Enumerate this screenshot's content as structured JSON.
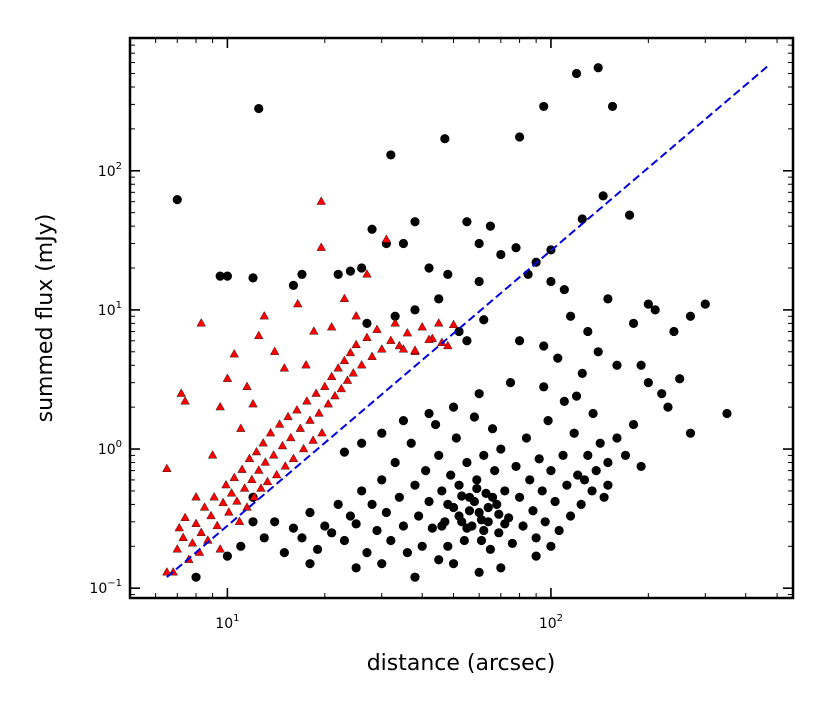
{
  "chart_data": {
    "type": "scatter",
    "title": "",
    "xlabel": "distance (arcsec)",
    "ylabel": "summed flux (mJy)",
    "xscale": "log",
    "yscale": "log",
    "xlim": [
      5.0,
      560
    ],
    "ylim": [
      0.085,
      900
    ],
    "x_ticks": [
      {
        "value": 10,
        "base": "10",
        "exp": "1"
      },
      {
        "value": 100,
        "base": "10",
        "exp": "2"
      }
    ],
    "y_ticks": [
      {
        "value": 0.1,
        "base": "10",
        "exp": "−1"
      },
      {
        "value": 1,
        "base": "10",
        "exp": "0"
      },
      {
        "value": 10,
        "base": "10",
        "exp": "1"
      },
      {
        "value": 100,
        "base": "10",
        "exp": "2"
      }
    ],
    "grid": false,
    "legend": "none",
    "colors": {
      "black_points": "#000000",
      "red_points": "#ff0000",
      "line": "#0000dd"
    },
    "series": [
      {
        "marker": "circle",
        "color": "#000000",
        "points": [
          [
            12.5,
            280
          ],
          [
            120,
            500
          ],
          [
            140,
            550
          ],
          [
            95,
            290
          ],
          [
            155,
            290
          ],
          [
            7,
            62
          ],
          [
            32,
            130
          ],
          [
            47,
            170
          ],
          [
            80,
            175
          ],
          [
            175,
            48
          ],
          [
            145,
            66
          ],
          [
            125,
            45
          ],
          [
            55,
            43
          ],
          [
            65,
            40
          ],
          [
            38,
            43
          ],
          [
            28,
            38
          ],
          [
            31,
            30
          ],
          [
            35,
            30
          ],
          [
            60,
            30
          ],
          [
            78,
            28
          ],
          [
            70,
            25
          ],
          [
            100,
            27
          ],
          [
            90,
            22
          ],
          [
            9.5,
            17.5
          ],
          [
            10,
            17.5
          ],
          [
            12,
            17
          ],
          [
            17,
            18
          ],
          [
            16,
            15
          ],
          [
            22,
            18
          ],
          [
            24,
            19
          ],
          [
            26,
            20
          ],
          [
            42,
            20
          ],
          [
            48,
            18
          ],
          [
            60,
            16
          ],
          [
            85,
            18
          ],
          [
            100,
            16
          ],
          [
            110,
            14
          ],
          [
            150,
            12
          ],
          [
            200,
            11
          ],
          [
            300,
            11
          ],
          [
            270,
            9
          ],
          [
            210,
            10
          ],
          [
            180,
            8
          ],
          [
            240,
            7
          ],
          [
            130,
            7
          ],
          [
            115,
            9
          ],
          [
            45,
            12
          ],
          [
            38,
            10
          ],
          [
            33,
            9
          ],
          [
            27,
            8
          ],
          [
            52,
            7
          ],
          [
            62,
            8.5
          ],
          [
            55,
            6
          ],
          [
            80,
            6
          ],
          [
            95,
            5.5
          ],
          [
            105,
            4.5
          ],
          [
            140,
            5
          ],
          [
            160,
            4
          ],
          [
            125,
            3.5
          ],
          [
            200,
            3
          ],
          [
            220,
            2.5
          ],
          [
            250,
            3.2
          ],
          [
            190,
            4
          ],
          [
            350,
            1.8
          ],
          [
            230,
            2
          ],
          [
            270,
            1.3
          ],
          [
            190,
            0.75
          ],
          [
            150,
            0.55
          ],
          [
            12,
            0.45
          ],
          [
            12,
            0.3
          ],
          [
            11,
            0.2
          ],
          [
            10,
            0.17
          ],
          [
            14,
            0.3
          ],
          [
            13,
            0.23
          ],
          [
            16,
            0.27
          ],
          [
            15,
            0.18
          ],
          [
            18,
            0.35
          ],
          [
            17,
            0.23
          ],
          [
            20,
            0.28
          ],
          [
            19,
            0.19
          ],
          [
            22,
            0.4
          ],
          [
            21,
            0.25
          ],
          [
            24,
            0.33
          ],
          [
            23,
            0.22
          ],
          [
            26,
            0.5
          ],
          [
            25,
            0.29
          ],
          [
            27,
            0.18
          ],
          [
            28,
            0.4
          ],
          [
            29,
            0.26
          ],
          [
            30,
            0.6
          ],
          [
            31,
            0.35
          ],
          [
            32,
            0.22
          ],
          [
            33,
            0.8
          ],
          [
            34,
            0.45
          ],
          [
            35,
            0.28
          ],
          [
            36,
            0.18
          ],
          [
            37,
            1.1
          ],
          [
            38,
            0.55
          ],
          [
            39,
            0.33
          ],
          [
            40,
            0.2
          ],
          [
            41,
            0.7
          ],
          [
            42,
            0.42
          ],
          [
            43,
            0.27
          ],
          [
            44,
            1.5
          ],
          [
            45,
            0.9
          ],
          [
            46,
            0.5
          ],
          [
            47,
            0.3
          ],
          [
            48,
            0.2
          ],
          [
            49,
            0.65
          ],
          [
            50,
            0.38
          ],
          [
            51,
            1.2
          ],
          [
            52,
            0.55
          ],
          [
            53,
            0.3
          ],
          [
            54,
            0.22
          ],
          [
            55,
            0.8
          ],
          [
            56,
            0.45
          ],
          [
            57,
            0.28
          ],
          [
            58,
            1.7
          ],
          [
            59,
            0.6
          ],
          [
            60,
            0.35
          ],
          [
            61,
            0.22
          ],
          [
            62,
            0.9
          ],
          [
            63,
            0.48
          ],
          [
            64,
            0.3
          ],
          [
            65,
            0.19
          ],
          [
            66,
            1.4
          ],
          [
            67,
            0.7
          ],
          [
            68,
            0.4
          ],
          [
            69,
            0.25
          ],
          [
            70,
            1
          ],
          [
            72,
            0.5
          ],
          [
            74,
            0.32
          ],
          [
            76,
            0.21
          ],
          [
            78,
            0.75
          ],
          [
            80,
            0.45
          ],
          [
            82,
            0.28
          ],
          [
            84,
            1.2
          ],
          [
            86,
            0.6
          ],
          [
            88,
            0.36
          ],
          [
            90,
            0.23
          ],
          [
            92,
            0.85
          ],
          [
            94,
            0.5
          ],
          [
            96,
            0.3
          ],
          [
            98,
            1.6
          ],
          [
            100,
            0.7
          ],
          [
            103,
            0.42
          ],
          [
            106,
            0.26
          ],
          [
            109,
            0.9
          ],
          [
            112,
            0.55
          ],
          [
            115,
            0.33
          ],
          [
            118,
            1.3
          ],
          [
            121,
            0.65
          ],
          [
            124,
            0.4
          ],
          [
            127,
            0.6
          ],
          [
            130,
            0.9
          ],
          [
            134,
            0.5
          ],
          [
            138,
            0.7
          ],
          [
            142,
            1.1
          ],
          [
            146,
            0.45
          ],
          [
            150,
            0.8
          ],
          [
            160,
            1.2
          ],
          [
            170,
            0.9
          ],
          [
            180,
            1.5
          ],
          [
            110,
            2.2
          ],
          [
            95,
            2.8
          ],
          [
            75,
            3
          ],
          [
            60,
            2.5
          ],
          [
            50,
            2
          ],
          [
            42,
            1.8
          ],
          [
            35,
            1.6
          ],
          [
            30,
            1.3
          ],
          [
            26,
            1.1
          ],
          [
            23,
            0.95
          ],
          [
            120,
            2.4
          ],
          [
            135,
            1.8
          ],
          [
            100,
            0.2
          ],
          [
            90,
            0.17
          ],
          [
            70,
            0.14
          ],
          [
            60,
            0.13
          ],
          [
            50,
            0.15
          ],
          [
            45,
            0.16
          ],
          [
            38,
            0.12
          ],
          [
            30,
            0.15
          ],
          [
            25,
            0.14
          ],
          [
            18,
            0.15
          ],
          [
            8,
            0.12
          ],
          [
            56,
            0.36
          ],
          [
            58,
            0.42
          ],
          [
            61,
            0.31
          ],
          [
            64,
            0.38
          ],
          [
            52,
            0.33
          ],
          [
            48,
            0.4
          ],
          [
            46,
            0.28
          ],
          [
            66,
            0.45
          ],
          [
            69,
            0.34
          ],
          [
            72,
            0.29
          ],
          [
            55,
            0.27
          ],
          [
            62,
            0.26
          ],
          [
            53,
            0.46
          ],
          [
            59,
            0.52
          ]
        ]
      },
      {
        "marker": "triangle",
        "color": "#ff0000",
        "points": [
          [
            6.5,
            0.13
          ],
          [
            6.8,
            0.13
          ],
          [
            7,
            0.19
          ],
          [
            7.1,
            0.27
          ],
          [
            7.3,
            0.23
          ],
          [
            7.4,
            0.32
          ],
          [
            7.6,
            0.16
          ],
          [
            7.8,
            0.21
          ],
          [
            8,
            0.29
          ],
          [
            8.2,
            0.18
          ],
          [
            8.3,
            0.25
          ],
          [
            8.5,
            0.38
          ],
          [
            8.7,
            0.22
          ],
          [
            8.9,
            0.33
          ],
          [
            9.1,
            0.45
          ],
          [
            9.3,
            0.28
          ],
          [
            9.5,
            0.19
          ],
          [
            9.7,
            0.41
          ],
          [
            9.9,
            0.55
          ],
          [
            10.1,
            0.35
          ],
          [
            10.3,
            0.48
          ],
          [
            10.5,
            0.62
          ],
          [
            10.7,
            0.42
          ],
          [
            10.9,
            0.3
          ],
          [
            11.1,
            0.71
          ],
          [
            11.3,
            0.52
          ],
          [
            11.5,
            0.38
          ],
          [
            11.7,
            0.85
          ],
          [
            11.9,
            0.6
          ],
          [
            12.1,
            0.45
          ],
          [
            12.3,
            0.95
          ],
          [
            12.5,
            0.7
          ],
          [
            12.7,
            0.52
          ],
          [
            12.9,
            1.1
          ],
          [
            13.1,
            0.8
          ],
          [
            13.3,
            0.58
          ],
          [
            13.6,
            1.3
          ],
          [
            13.9,
            0.9
          ],
          [
            14.2,
            0.65
          ],
          [
            14.5,
            1.5
          ],
          [
            14.8,
            1.05
          ],
          [
            15.1,
            0.75
          ],
          [
            15.4,
            1.7
          ],
          [
            15.7,
            1.2
          ],
          [
            16,
            0.85
          ],
          [
            16.4,
            1.9
          ],
          [
            16.8,
            1.4
          ],
          [
            17.2,
            1
          ],
          [
            17.6,
            2.2
          ],
          [
            18,
            1.6
          ],
          [
            18.4,
            1.15
          ],
          [
            18.8,
            2.5
          ],
          [
            19.2,
            1.8
          ],
          [
            19.6,
            1.3
          ],
          [
            20,
            2.8
          ],
          [
            20.5,
            2.1
          ],
          [
            21,
            3.3
          ],
          [
            21.5,
            2.4
          ],
          [
            22,
            3.8
          ],
          [
            22.5,
            2.7
          ],
          [
            23,
            4.3
          ],
          [
            23.5,
            3.1
          ],
          [
            24,
            4.9
          ],
          [
            24.5,
            3.5
          ],
          [
            25,
            5.6
          ],
          [
            26,
            4
          ],
          [
            27,
            6.3
          ],
          [
            28,
            4.6
          ],
          [
            29,
            7.2
          ],
          [
            30,
            5.2
          ],
          [
            32,
            6
          ],
          [
            34,
            5.5
          ],
          [
            36,
            6.8
          ],
          [
            38,
            5
          ],
          [
            40,
            7.5
          ],
          [
            43,
            6.2
          ],
          [
            46,
            5.8
          ],
          [
            50,
            7.8
          ],
          [
            6.5,
            0.72
          ],
          [
            7.2,
            2.5
          ],
          [
            7.4,
            2.2
          ],
          [
            8.3,
            8
          ],
          [
            9.5,
            2
          ],
          [
            10,
            3.2
          ],
          [
            10.5,
            4.8
          ],
          [
            11.5,
            2.8
          ],
          [
            12.5,
            6.5
          ],
          [
            13,
            9
          ],
          [
            14,
            5
          ],
          [
            15,
            3.8
          ],
          [
            16.5,
            11
          ],
          [
            17.5,
            4
          ],
          [
            18.5,
            7
          ],
          [
            19.5,
            28
          ],
          [
            19.5,
            60
          ],
          [
            21,
            7.5
          ],
          [
            23,
            12
          ],
          [
            25,
            9
          ],
          [
            27,
            18
          ],
          [
            31,
            32
          ],
          [
            33,
            8
          ],
          [
            35,
            5.2
          ],
          [
            38,
            5.1
          ],
          [
            42,
            6.1
          ],
          [
            45,
            8
          ],
          [
            48,
            5.5
          ],
          [
            8,
            0.45
          ],
          [
            9,
            0.9
          ],
          [
            11,
            1.4
          ],
          [
            12,
            2.1
          ]
        ]
      }
    ],
    "fit_line": {
      "style": "dashed",
      "color": "#0000dd",
      "points": [
        [
          6.5,
          0.12
        ],
        [
          470,
          570
        ]
      ]
    }
  }
}
